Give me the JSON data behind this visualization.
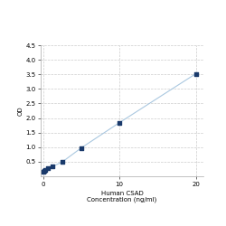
{
  "x_values": [
    0,
    0.156,
    0.313,
    0.625,
    1.25,
    2.5,
    5,
    10,
    20
  ],
  "y_values": [
    0.152,
    0.183,
    0.211,
    0.266,
    0.338,
    0.488,
    0.972,
    1.84,
    3.52
  ],
  "line_color": "#aac8e0",
  "marker_color": "#1a3a6b",
  "marker_size": 4,
  "xlabel_line1": "Human CSAD",
  "xlabel_line2": "Concentration (ng/ml)",
  "ylabel": "OD",
  "xlim": [
    -0.3,
    21
  ],
  "ylim": [
    0,
    4.5
  ],
  "yticks": [
    0.5,
    1.0,
    1.5,
    2.0,
    2.5,
    3.0,
    3.5,
    4.0,
    4.5
  ],
  "xticks": [
    0,
    10,
    20
  ],
  "grid_color": "#cccccc",
  "background_color": "#ffffff",
  "tick_fontsize": 5,
  "label_fontsize": 5
}
